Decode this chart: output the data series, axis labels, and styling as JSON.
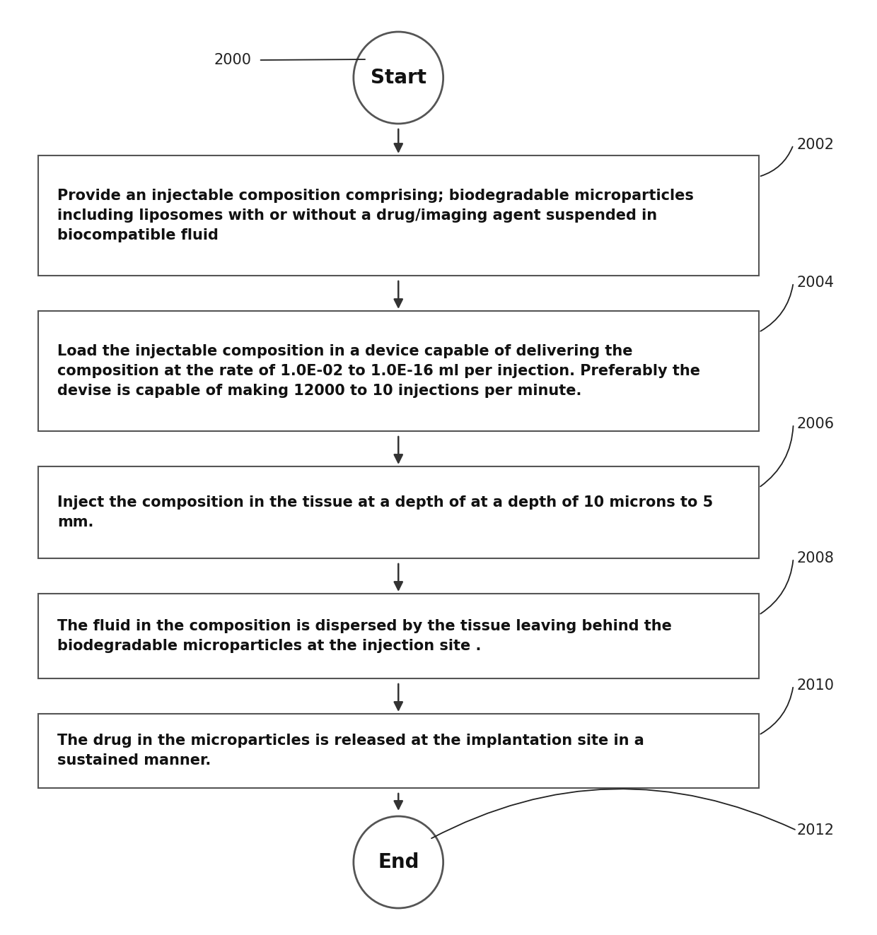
{
  "bg_color": "#ffffff",
  "box_color": "#ffffff",
  "box_edge_color": "#555555",
  "arrow_color": "#333333",
  "text_color": "#111111",
  "label_color": "#222222",
  "circle_color": "#ffffff",
  "circle_edge_color": "#555555",
  "start_label": "Start",
  "end_label": "End",
  "start_id": "2000",
  "end_id": "2012",
  "box_ids": [
    "2002",
    "2004",
    "2006",
    "2008",
    "2010"
  ],
  "box_texts": [
    "Provide an injectable composition comprising; biodegradable microparticles\nincluding liposomes with or without a drug/imaging agent suspended in\nbiocompatible fluid",
    "Load the injectable composition in a device capable of delivering the\ncomposition at the rate of 1.0E-02 to 1.0E-16 ml per injection. Preferably the\ndevise is capable of making 12000 to 10 injections per minute.",
    "Inject the composition in the tissue at a depth of at a depth of 10 microns to 5\nmm.",
    "The fluid in the composition is dispersed by the tissue leaving behind the\nbiodegradable microparticles at the injection site .",
    "The drug in the microparticles is released at the implantation site in a\nsustained manner."
  ],
  "figsize": [
    12.4,
    13.23
  ],
  "dpi": 100
}
